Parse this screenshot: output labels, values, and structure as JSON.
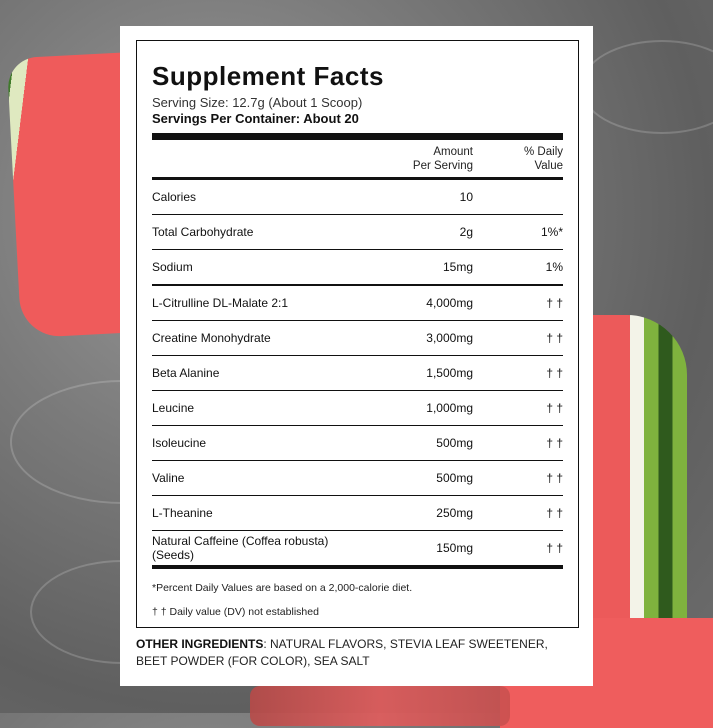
{
  "supplement_facts": {
    "title": "Supplement Facts",
    "serving_size": "Serving Size: 12.7g (About 1 Scoop)",
    "servings_per_container": "Servings Per Container: About 20",
    "header": {
      "amount": "Amount\nPer Serving",
      "daily_value": "% Daily\nValue"
    },
    "rows": [
      {
        "name": "Calories",
        "amount": "10",
        "dv": ""
      },
      {
        "name": "Total Carbohydrate",
        "amount": "2g",
        "dv": "1%*"
      },
      {
        "name": "Sodium",
        "amount": "15mg",
        "dv": "1%"
      },
      {
        "name": "L-Citrulline DL-Malate 2:1",
        "amount": "4,000mg",
        "dv": "† †"
      },
      {
        "name": "Creatine Monohydrate",
        "amount": "3,000mg",
        "dv": "† †"
      },
      {
        "name": "Beta Alanine",
        "amount": "1,500mg",
        "dv": "† †"
      },
      {
        "name": "Leucine",
        "amount": "1,000mg",
        "dv": "† †"
      },
      {
        "name": "Isoleucine",
        "amount": "500mg",
        "dv": "† †"
      },
      {
        "name": "Valine",
        "amount": "500mg",
        "dv": "† †"
      },
      {
        "name": "L-Theanine",
        "amount": "250mg",
        "dv": "† †"
      },
      {
        "name": "Natural Caffeine (Coffea robusta) (Seeds)",
        "amount": "150mg",
        "dv": "† †"
      }
    ],
    "footnote_percent": "*Percent Daily Values are based on a 2,000-calorie diet.",
    "footnote_dagger": "† † Daily value (DV) not established"
  },
  "other_ingredients": {
    "label": "OTHER INGREDIENTS",
    "text": ": NATURAL FLAVORS, STEVIA LEAF SWEETENER, BEET POWDER (FOR COLOR), SEA SALT"
  },
  "colors": {
    "background": "#7b7b7b",
    "panel": "#ffffff",
    "text": "#111111",
    "watermelon_red": "#ef5b5b",
    "rind_green": "#3f7a2a"
  }
}
